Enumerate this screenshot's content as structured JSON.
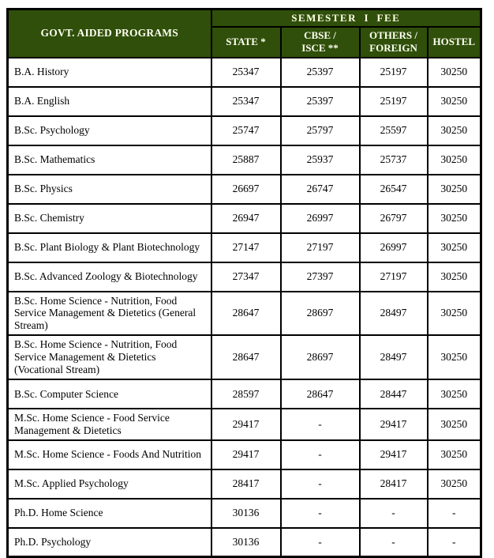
{
  "table": {
    "corner_header": "GOVT. AIDED PROGRAMS",
    "group_header": "SEMESTER  I  FEE",
    "columns": [
      "STATE *",
      "CBSE /\nISCE **",
      "OTHERS /\nFOREIGN",
      "HOSTEL"
    ],
    "rows": [
      {
        "program": "B.A. History",
        "state": "25347",
        "cbse": "25397",
        "others": "25197",
        "hostel": "30250"
      },
      {
        "program": "B.A. English",
        "state": "25347",
        "cbse": "25397",
        "others": "25197",
        "hostel": "30250"
      },
      {
        "program": "B.Sc. Psychology",
        "state": "25747",
        "cbse": "25797",
        "others": "25597",
        "hostel": "30250"
      },
      {
        "program": "B.Sc. Mathematics",
        "state": "25887",
        "cbse": "25937",
        "others": "25737",
        "hostel": "30250"
      },
      {
        "program": "B.Sc. Physics",
        "state": "26697",
        "cbse": "26747",
        "others": "26547",
        "hostel": "30250"
      },
      {
        "program": "B.Sc. Chemistry",
        "state": "26947",
        "cbse": "26997",
        "others": "26797",
        "hostel": "30250"
      },
      {
        "program": "B.Sc. Plant Biology & Plant Biotechnology",
        "state": "27147",
        "cbse": "27197",
        "others": "26997",
        "hostel": "30250"
      },
      {
        "program": "B.Sc. Advanced Zoology & Biotechnology",
        "state": "27347",
        "cbse": "27397",
        "others": "27197",
        "hostel": "30250"
      },
      {
        "program": "B.Sc. Home Science - Nutrition, Food Service Management & Dietetics (General Stream)",
        "state": "28647",
        "cbse": "28697",
        "others": "28497",
        "hostel": "30250"
      },
      {
        "program": "B.Sc. Home Science - Nutrition, Food Service Management & Dietetics (Vocational Stream)",
        "state": "28647",
        "cbse": "28697",
        "others": "28497",
        "hostel": "30250"
      },
      {
        "program": "B.Sc. Computer Science",
        "state": "28597",
        "cbse": "28647",
        "others": "28447",
        "hostel": "30250"
      },
      {
        "program": "M.Sc. Home Science - Food Service Management & Dietetics",
        "state": "29417",
        "cbse": "-",
        "others": "29417",
        "hostel": "30250"
      },
      {
        "program": "M.Sc. Home Science - Foods And Nutrition",
        "state": "29417",
        "cbse": "-",
        "others": "29417",
        "hostel": "30250"
      },
      {
        "program": "M.Sc. Applied Psychology",
        "state": "28417",
        "cbse": "-",
        "others": "28417",
        "hostel": "30250"
      },
      {
        "program": "Ph.D. Home Science",
        "state": "30136",
        "cbse": "-",
        "others": "-",
        "hostel": "-"
      },
      {
        "program": "Ph.D. Psychology",
        "state": "30136",
        "cbse": "-",
        "others": "-",
        "hostel": "-"
      }
    ]
  },
  "colors": {
    "header_bg": "#2F4F0A",
    "header_group_text": "#FFFFE6",
    "header_col_text": "#FFFFF2",
    "border": "#000000",
    "cell_text": "#000000",
    "page_bg": "#FFFFFF"
  }
}
